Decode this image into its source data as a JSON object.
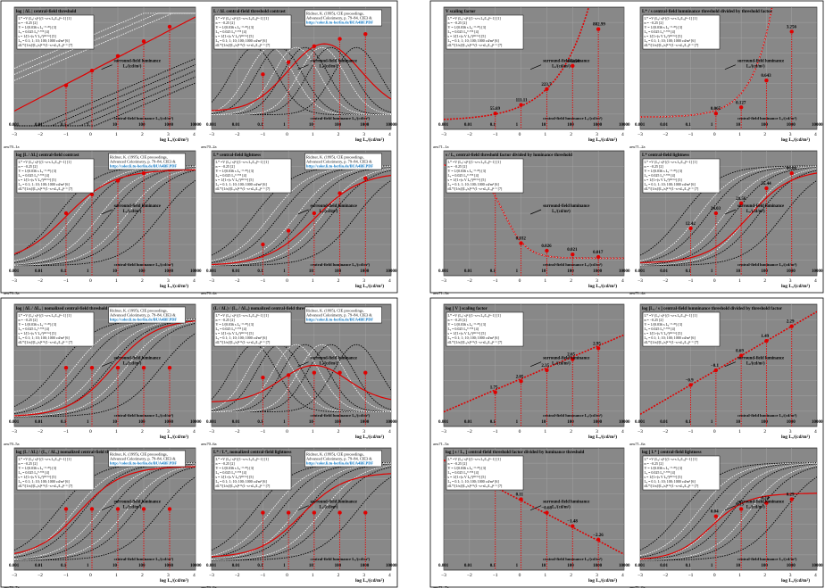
{
  "colors": {
    "panel_bg": "#888888",
    "grid": "#a8a8a8",
    "curve_red": "#e00000",
    "curve_white": "#ffffff",
    "curve_black": "#000000",
    "link": "#0070c0"
  },
  "shared": {
    "xlabel": "log Lₓ/(cd/m²)",
    "xticks": [
      "−3",
      "−2",
      "−1",
      "0",
      "1",
      "2",
      "3",
      "4"
    ],
    "lum_labels": [
      "0.001",
      "0.01",
      "0.1",
      "1",
      "10",
      "100",
      "1000",
      "10000"
    ],
    "central_label": "central-field luminance Lₓ/(cd/m²)",
    "surround_label": "surround-field luminance",
    "surround_unit": "Lₓ/(cd/m²)",
    "ref_lines": [
      "Richter, K. (1995), CIE proceedings,",
      "Advanced Colorimetry, p. 79–84, CIE3 &"
    ],
    "ref_link": "http://color.li.tu-berlin.de/BUA4BF.PDF",
    "formula_lines": [
      "L* =V (Lₓ/ s)ⁿ [(1−s+s Lₓ/Lₓ)ⁿ−1]  [1]",
      "n = −0.25  [2]",
      "V = 1/(0.036 s Lₓ⁻⁰·³⁰)  [3]",
      "Lₓ = 0.025 Lₓ⁰·⁷⁰⁵  [4]",
      "s = 1/[1+(s V Lₓ²)¹¹³⁺ⁿ]  [5]",
      "Lₓ = 0.1; 1; 10; 100; 1000 cd/m²  [6]",
      "dL*/[1/n]/[Lₓ/s]ⁿ⁺¹(1−s+sLₓ/Lₓ)ⁿ⁻¹  [7]"
    ]
  },
  "panels": [
    {
      "title": "log | ΔL | central-field threshold",
      "code": "aeu70–1a"
    },
    {
      "title": "L / ΔL central-field threshold contrast",
      "code": "aeu70–2a"
    },
    {
      "title": "V scaling factor",
      "code": "aeu71–1a",
      "pts": [
        "55.69",
        "111.11",
        "223.7",
        "442.54",
        "882.99"
      ]
    },
    {
      "title": "L* / s central-field lumninance threshold divided by threshold factor",
      "code": "aeu71–2a",
      "pts": [
        "0.065",
        "0.127",
        "0.643",
        "3.256"
      ]
    },
    {
      "title": "log [L / ΔL] central-field contrast",
      "code": "aeu70–3a"
    },
    {
      "title": "L* central-field lightness",
      "code": "aeu70–4a"
    },
    {
      "title": "s / Lₓ central-field threshold factor divided by luminance threshold",
      "code": "aeu71–3a",
      "pts": [
        "0.84",
        "0.032",
        "0.026",
        "0.021",
        "0.017"
      ]
    },
    {
      "title": "L* central-field lightness",
      "code": "aeu71–4a",
      "pts": [
        "12.42",
        "24.03",
        "28.56",
        "55.44",
        "86.66"
      ]
    },
    {
      "title": "log | ΔL / ΔLₓ | nomalized central-field threshold",
      "code": "aeu70–5a"
    },
    {
      "title": "(L / ΔL) / (Lₓ / ΔLₓ) nomalized central-field threshold contrast",
      "code": "aeu70–6a"
    },
    {
      "title": "log [ V ] scaling factor",
      "code": "aeu71–5a",
      "pts": [
        "1.75",
        "2.05",
        "2.35",
        "2.65",
        "2.95"
      ]
    },
    {
      "title": "log [Lₓ / s ] central-field lumninance threshold divided by threshold factor",
      "code": "aeu71–6a",
      "pts": [
        "−0.9",
        "−0.1",
        "0.69",
        "1.49",
        "2.29"
      ]
    },
    {
      "title": "log (L / ΔL) / (Lₓ / ΔLₓ) nomalized central-field threshold contrast",
      "code": "aeu70–7a"
    },
    {
      "title": "L* / L*ₓ nomalized central-field lightness",
      "code": "aeu70–8a"
    },
    {
      "title": "log [ s / Lₓ ] central-field threshold factor divided by luminance threshold",
      "code": "aeu71–7a",
      "pts": [
        "0.91",
        "0.11",
        "−0.68",
        "−1.48",
        "−2.26"
      ]
    },
    {
      "title": "log [ L* ] central-field lightness",
      "code": "aeu71–8a",
      "pts": [
        "0.04",
        "0.13",
        "0.24",
        "0.29"
      ]
    }
  ],
  "chart_data": [
    {
      "type": "line",
      "title": "log | ΔL | central-field threshold",
      "xlabel": "log Lₓ/(cd/m²)",
      "xlim": [
        -3,
        4
      ]
    },
    {
      "type": "line",
      "title": "V scaling factor",
      "xlabel": "log Lₓ/(cd/m²)",
      "xlim": [
        -3,
        4
      ],
      "x": [
        -1,
        0,
        1,
        2,
        3
      ],
      "values": [
        55.69,
        111.11,
        223.7,
        442.54,
        882.99
      ]
    },
    {
      "type": "line",
      "title": "L* / s central-field lumninance threshold divided by threshold factor",
      "xlabel": "log Lₓ/(cd/m²)",
      "xlim": [
        -3,
        4
      ],
      "x": [
        0,
        1,
        2,
        3
      ],
      "values": [
        0.065,
        0.127,
        0.643,
        3.256
      ]
    },
    {
      "type": "line",
      "title": "s / Lₓ central-field threshold factor divided by luminance threshold",
      "xlabel": "log Lₓ/(cd/m²)",
      "xlim": [
        -3,
        4
      ],
      "x": [
        -1,
        0,
        1,
        2,
        3
      ],
      "values": [
        0.84,
        0.032,
        0.026,
        0.021,
        0.017
      ]
    },
    {
      "type": "line",
      "title": "L* central-field lightness",
      "xlabel": "log Lₓ/(cd/m²)",
      "xlim": [
        -3,
        4
      ],
      "x": [
        -1,
        0,
        1,
        2,
        3
      ],
      "values": [
        12.42,
        24.03,
        28.56,
        55.44,
        86.66
      ]
    },
    {
      "type": "line",
      "title": "log [ V ] scaling factor",
      "xlabel": "log Lₓ/(cd/m²)",
      "xlim": [
        -3,
        4
      ],
      "x": [
        -1,
        0,
        1,
        2,
        3
      ],
      "values": [
        1.75,
        2.05,
        2.35,
        2.65,
        2.95
      ]
    },
    {
      "type": "line",
      "title": "log [Lₓ / s ] central-field lumninance threshold divided by threshold factor",
      "xlabel": "log Lₓ/(cd/m²)",
      "xlim": [
        -3,
        4
      ],
      "x": [
        -1,
        0,
        1,
        2,
        3
      ],
      "values": [
        -0.9,
        -0.1,
        0.69,
        1.49,
        2.29
      ]
    },
    {
      "type": "line",
      "title": "log [ s / Lₓ ] central-field threshold factor divided by luminance threshold",
      "xlabel": "log Lₓ/(cd/m²)",
      "xlim": [
        -3,
        4
      ],
      "x": [
        -1,
        0,
        1,
        2,
        3
      ],
      "values": [
        0.91,
        0.11,
        -0.68,
        -1.48,
        -2.26
      ]
    },
    {
      "type": "line",
      "title": "log [ L* ] central-field lightness",
      "xlabel": "log Lₓ/(cd/m²)",
      "xlim": [
        -3,
        4
      ],
      "x": [
        0,
        1,
        2,
        3
      ],
      "values": [
        0.04,
        0.13,
        0.24,
        0.29
      ]
    }
  ]
}
